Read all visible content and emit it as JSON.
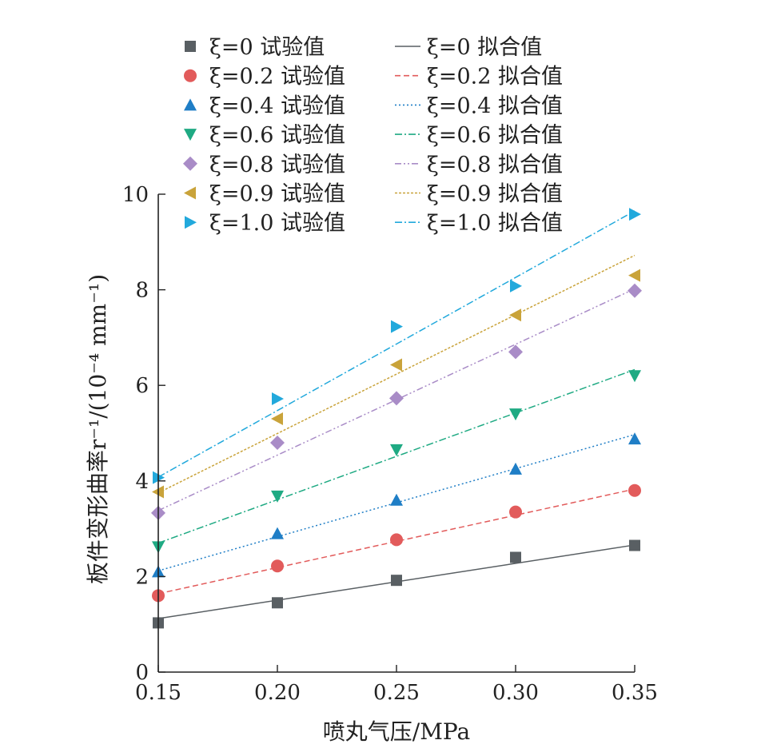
{
  "chart_data": {
    "type": "scatter",
    "xlabel": "喷丸气压/MPa",
    "ylabel": "板件变形曲率r⁻¹/(10⁻⁴ mm⁻¹)",
    "x": [
      0.15,
      0.2,
      0.25,
      0.3,
      0.35
    ],
    "x_tick_labels": [
      "0.15",
      "0.20",
      "0.25",
      "0.30",
      "0.35"
    ],
    "y_ticks": [
      0,
      2,
      4,
      6,
      8,
      10
    ],
    "xlim": [
      0.15,
      0.35
    ],
    "ylim": [
      0,
      10
    ],
    "grid": false,
    "legend_position": "top",
    "series": [
      {
        "name": "ξ=0 试验值",
        "kind": "experimental",
        "marker": "square",
        "color": "#595f63",
        "values": [
          1.03,
          1.45,
          1.92,
          2.4,
          2.65
        ]
      },
      {
        "name": "ξ=0.2 试验值",
        "kind": "experimental",
        "marker": "circle",
        "color": "#e25b5b",
        "values": [
          1.6,
          2.22,
          2.77,
          3.35,
          3.8
        ]
      },
      {
        "name": "ξ=0.4 试验值",
        "kind": "experimental",
        "marker": "triangle-up",
        "color": "#1f7ec6",
        "values": [
          2.1,
          2.9,
          3.6,
          4.25,
          4.88
        ]
      },
      {
        "name": "ξ=0.6 试验值",
        "kind": "experimental",
        "marker": "triangle-down",
        "color": "#1faa83",
        "values": [
          2.62,
          3.68,
          4.65,
          5.4,
          6.2
        ]
      },
      {
        "name": "ξ=0.8 试验值",
        "kind": "experimental",
        "marker": "diamond",
        "color": "#a98cc7",
        "values": [
          3.33,
          4.8,
          5.73,
          6.7,
          7.98
        ]
      },
      {
        "name": "ξ=0.9 试验值",
        "kind": "experimental",
        "marker": "triangle-left",
        "color": "#c9a33a",
        "values": [
          3.77,
          5.3,
          6.43,
          7.47,
          8.3
        ]
      },
      {
        "name": "ξ=1.0 试验值",
        "kind": "experimental",
        "marker": "triangle-right",
        "color": "#22a9dc",
        "values": [
          4.07,
          5.72,
          7.23,
          8.08,
          9.58
        ]
      }
    ],
    "fits": [
      {
        "name": "ξ=0 拟合值",
        "color": "#595f63",
        "dash": "solid",
        "line": [
          1.12,
          2.66
        ]
      },
      {
        "name": "ξ=0.2 拟合值",
        "color": "#e25b5b",
        "dash": "dashed",
        "line": [
          1.64,
          3.83
        ]
      },
      {
        "name": "ξ=0.4 拟合值",
        "color": "#1f7ec6",
        "dash": "dotted",
        "line": [
          2.12,
          4.97
        ]
      },
      {
        "name": "ξ=0.6 拟合值",
        "color": "#1faa83",
        "dash": "dash-dot",
        "line": [
          2.7,
          6.33
        ]
      },
      {
        "name": "ξ=0.8 拟合值",
        "color": "#a98cc7",
        "dash": "dash-dot-dot",
        "line": [
          3.38,
          8.02
        ]
      },
      {
        "name": "ξ=0.9 拟合值",
        "color": "#c9a33a",
        "dash": "short-dot",
        "line": [
          3.75,
          8.72
        ]
      },
      {
        "name": "ξ=1.0 拟合值",
        "color": "#22a9dc",
        "dash": "dash-dot",
        "line": [
          4.08,
          9.65
        ]
      }
    ]
  }
}
